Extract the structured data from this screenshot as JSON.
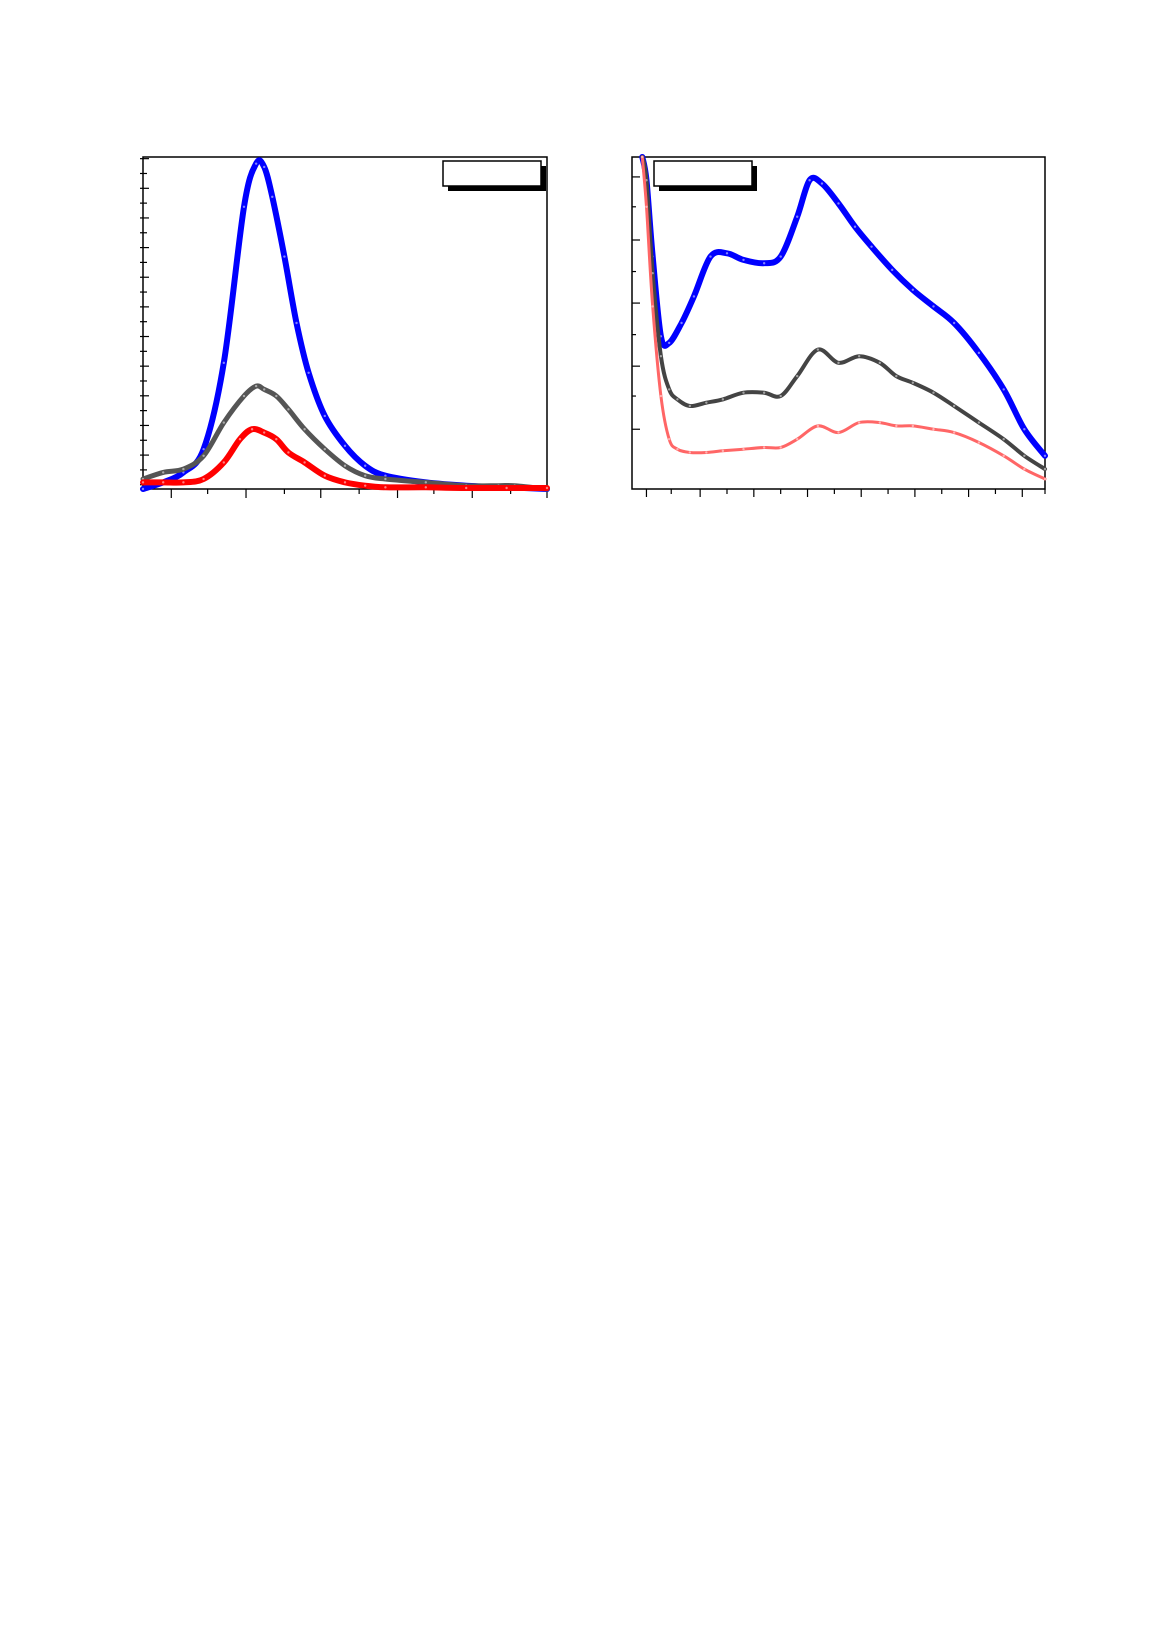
{
  "chart_data": [
    {
      "type": "line",
      "title": "",
      "xlabel": "",
      "ylabel": "",
      "xlim": [
        0,
        10
      ],
      "ylim": [
        0,
        100
      ],
      "grid": false,
      "legend": {
        "placement": "top-right",
        "entries": []
      },
      "series": [
        {
          "color": "#0000ff",
          "x": [
            0,
            0.5,
            1.0,
            1.5,
            2.0,
            2.5,
            2.8,
            3.0,
            3.2,
            3.5,
            3.8,
            4.1,
            4.5,
            5.0,
            5.5,
            6.0,
            7.0,
            8.0,
            9.0,
            10.0
          ],
          "y": [
            0,
            2,
            5,
            12,
            38,
            85,
            98,
            97,
            88,
            70,
            50,
            35,
            22,
            13,
            7,
            4,
            2,
            1,
            0.5,
            0
          ]
        },
        {
          "color": "#555555",
          "x": [
            0,
            0.5,
            1.0,
            1.5,
            2.0,
            2.5,
            2.8,
            3.0,
            3.3,
            3.6,
            4.0,
            4.5,
            5.0,
            5.5,
            6.0,
            7.0,
            8.0,
            8.8,
            9.2,
            10.0
          ],
          "y": [
            3,
            5,
            6,
            10,
            20,
            28,
            31,
            30,
            28,
            24,
            18,
            12,
            7,
            4,
            3,
            2,
            1,
            1,
            1,
            0
          ]
        },
        {
          "color": "#ff0000",
          "x": [
            0,
            0.5,
            1.0,
            1.5,
            2.0,
            2.4,
            2.7,
            3.0,
            3.3,
            3.6,
            4.0,
            4.5,
            5.0,
            5.5,
            6.0,
            7.0,
            8.0,
            9.0,
            10.0
          ],
          "y": [
            2,
            2,
            2,
            3,
            8,
            15,
            18,
            17,
            15,
            11,
            8,
            4,
            2,
            1,
            0.5,
            0.5,
            0.3,
            0.3,
            0.3
          ]
        }
      ]
    },
    {
      "type": "line",
      "title": "",
      "xlabel": "",
      "ylabel": "",
      "xlim": [
        0,
        10
      ],
      "ylim": [
        0,
        100
      ],
      "grid": false,
      "legend": {
        "placement": "top-left",
        "entries": []
      },
      "series": [
        {
          "color": "#0000ff",
          "x": [
            0.25,
            0.35,
            0.5,
            0.7,
            0.9,
            1.2,
            1.5,
            1.9,
            2.3,
            2.7,
            3.2,
            3.6,
            4.0,
            4.3,
            4.6,
            5.0,
            5.4,
            5.8,
            6.3,
            6.8,
            7.3,
            7.8,
            8.4,
            9.0,
            9.5,
            10.0
          ],
          "y": [
            100,
            93,
            70,
            46,
            44,
            50,
            58,
            70,
            71,
            69,
            68,
            70,
            82,
            93,
            92,
            86,
            79,
            73,
            66,
            60,
            55,
            50,
            41,
            30,
            18,
            10
          ]
        },
        {
          "color": "#444444",
          "x": [
            0.25,
            0.35,
            0.5,
            0.7,
            0.9,
            1.1,
            1.4,
            1.8,
            2.2,
            2.7,
            3.2,
            3.6,
            4.0,
            4.5,
            5.0,
            5.5,
            6.0,
            6.4,
            6.8,
            7.3,
            7.8,
            8.4,
            9.0,
            9.5,
            10.0
          ],
          "y": [
            100,
            93,
            65,
            40,
            30,
            27,
            25,
            26,
            27,
            29,
            29,
            28,
            34,
            42,
            38,
            40,
            38,
            34,
            32,
            29,
            25,
            20,
            15,
            10,
            6
          ]
        },
        {
          "color": "#ff6666",
          "x": [
            0.25,
            0.35,
            0.5,
            0.7,
            0.9,
            1.1,
            1.4,
            1.8,
            2.2,
            2.7,
            3.2,
            3.6,
            4.0,
            4.5,
            5.0,
            5.5,
            6.0,
            6.4,
            6.8,
            7.3,
            7.8,
            8.4,
            9.0,
            9.5,
            10.0
          ],
          "y": [
            100,
            85,
            55,
            28,
            15,
            12,
            11,
            11,
            11.5,
            12,
            12.5,
            12.5,
            15,
            19,
            17,
            20,
            20,
            19,
            19,
            18,
            17,
            14,
            10,
            6,
            3
          ]
        }
      ]
    }
  ]
}
